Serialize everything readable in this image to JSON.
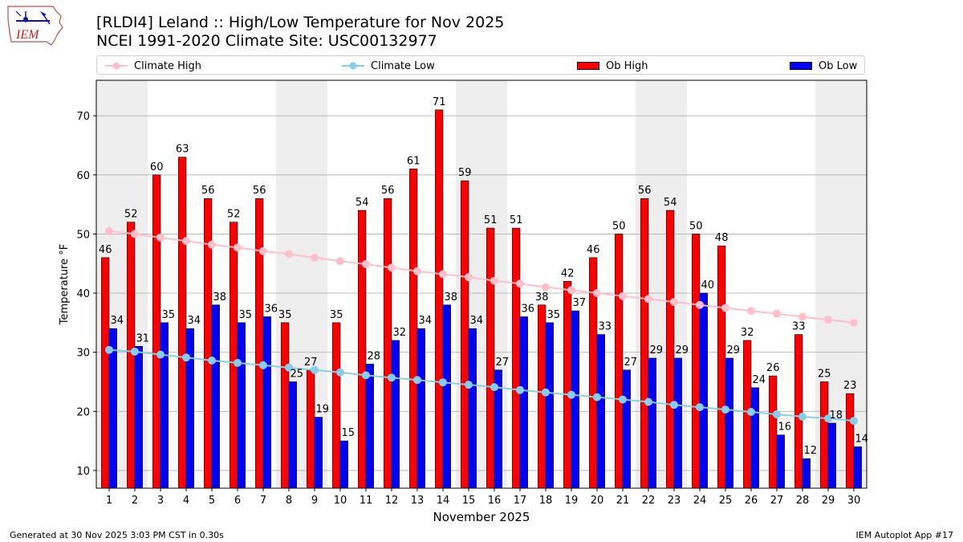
{
  "header": {
    "title_line1": "[RLDI4] Leland :: High/Low Temperature for Nov 2025",
    "title_line2": "NCEI 1991-2020 Climate Site: USC00132977",
    "logo_text": "IEM"
  },
  "legend": {
    "climate_high": "Climate High",
    "climate_low": "Climate Low",
    "ob_high": "Ob High",
    "ob_low": "Ob Low"
  },
  "footer": {
    "generated": "Generated at 30 Nov 2025 3:03 PM CST in 0.30s",
    "app": "IEM Autoplot App #17"
  },
  "colors": {
    "ob_high": "#ff0000",
    "ob_low": "#0000ff",
    "climate_high": "#ffc0cb",
    "climate_low": "#87ceeb",
    "weekend_shading": "#eeeeee",
    "grid": "#b0b0b0"
  },
  "chart_data": {
    "type": "bar",
    "xlabel": "November 2025",
    "ylabel": "Temperature °F",
    "ylim": [
      7,
      76
    ],
    "yticks": [
      10,
      20,
      30,
      40,
      50,
      60,
      70
    ],
    "categories": [
      "1",
      "2",
      "3",
      "4",
      "5",
      "6",
      "7",
      "8",
      "9",
      "10",
      "11",
      "12",
      "13",
      "14",
      "15",
      "16",
      "17",
      "18",
      "19",
      "20",
      "21",
      "22",
      "23",
      "24",
      "25",
      "26",
      "27",
      "28",
      "29",
      "30"
    ],
    "shaded_days": [
      1,
      2,
      8,
      9,
      15,
      16,
      22,
      23,
      29,
      30
    ],
    "grid": "horizontal",
    "legend_position": "top",
    "series": [
      {
        "name": "Ob High",
        "kind": "bar",
        "values": [
          46,
          52,
          60,
          63,
          56,
          52,
          56,
          35,
          27,
          35,
          54,
          56,
          61,
          71,
          59,
          51,
          51,
          38,
          42,
          46,
          50,
          56,
          54,
          50,
          48,
          32,
          26,
          33,
          25,
          23
        ]
      },
      {
        "name": "Ob Low",
        "kind": "bar",
        "values": [
          34,
          31,
          35,
          34,
          38,
          35,
          36,
          25,
          19,
          15,
          28,
          32,
          34,
          38,
          34,
          27,
          36,
          35,
          37,
          33,
          27,
          29,
          29,
          40,
          29,
          24,
          16,
          12,
          18,
          14
        ]
      },
      {
        "name": "Climate High",
        "kind": "line",
        "values": [
          50.5,
          50.0,
          49.4,
          48.8,
          48.2,
          47.7,
          47.1,
          46.6,
          46.0,
          45.4,
          44.9,
          44.3,
          43.7,
          43.2,
          42.7,
          42.1,
          41.6,
          41.0,
          40.5,
          40.0,
          39.5,
          39.0,
          38.5,
          38.0,
          37.5,
          37.0,
          36.5,
          36.0,
          35.5,
          35.0
        ]
      },
      {
        "name": "Climate Low",
        "kind": "line",
        "values": [
          30.4,
          30.1,
          29.6,
          29.1,
          28.6,
          28.2,
          27.8,
          27.4,
          27.0,
          26.6,
          26.1,
          25.7,
          25.3,
          24.9,
          24.5,
          24.1,
          23.6,
          23.2,
          22.8,
          22.4,
          22.0,
          21.6,
          21.1,
          20.7,
          20.3,
          19.9,
          19.5,
          19.1,
          18.8,
          18.4
        ]
      }
    ]
  }
}
